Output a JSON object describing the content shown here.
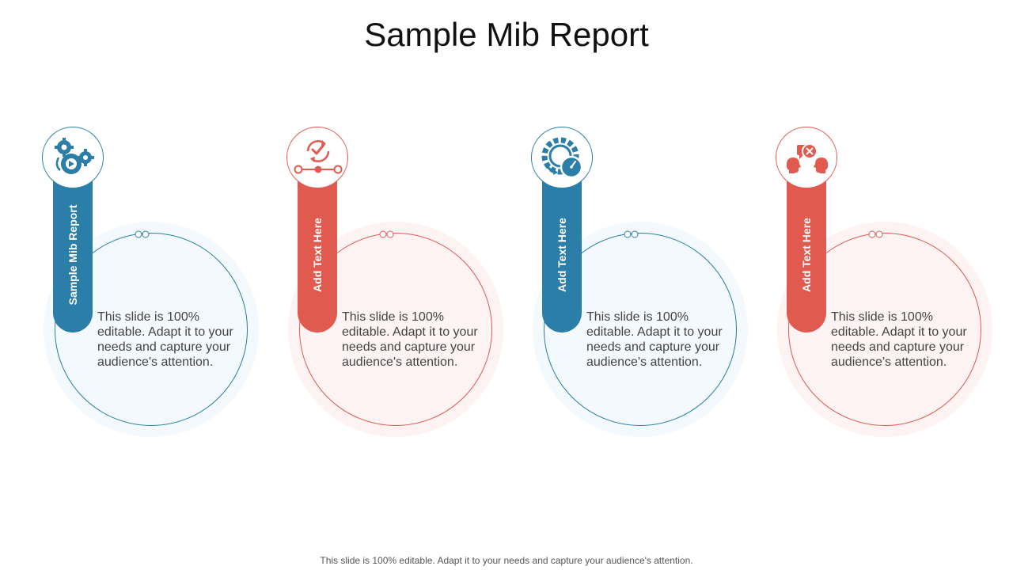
{
  "title": "Sample Mib Report",
  "colors": {
    "blue": "#2a7ea7",
    "red": "#e05a50"
  },
  "cards": [
    {
      "label": "Sample Mib Report",
      "text": "This slide is 100% editable. Adapt it to your needs and capture your audience's attention.",
      "icon": "gears-play-icon",
      "color": "blue"
    },
    {
      "label": "Add Text Here",
      "text": "This slide is 100% editable. Adapt it to your needs and capture your audience's attention.",
      "icon": "check-progress-icon",
      "color": "red"
    },
    {
      "label": "Add Text Here",
      "text": "This slide is 100% editable. Adapt it to your needs and capture your audience's attention.",
      "icon": "gear-gauge-icon",
      "color": "blue"
    },
    {
      "label": "Add Text Here",
      "text": "This slide is 100% editable. Adapt it to your needs and capture your audience's attention.",
      "icon": "heads-conflict-icon",
      "color": "red"
    }
  ],
  "footer": "This slide is 100% editable. Adapt it to your needs and capture your audience's attention."
}
